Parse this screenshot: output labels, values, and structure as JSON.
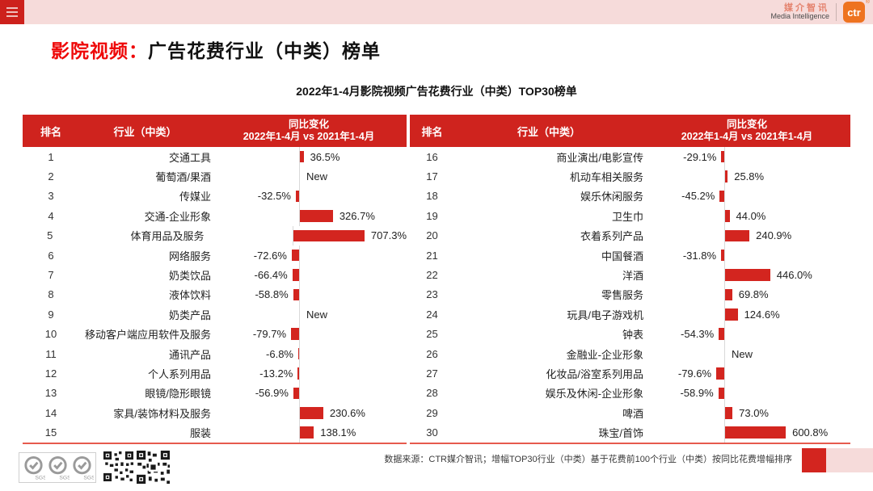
{
  "topbar": {
    "brand_cn": "媒介智讯",
    "brand_en": "Media Intelligence",
    "logo_text": "ctr",
    "reg_mark": "®"
  },
  "title": {
    "highlight": "影院视频：",
    "rest": "广告花费行业（中类）榜单"
  },
  "subtitle": "2022年1-4月影院视频广告花费行业（中类）TOP30榜单",
  "table_headers": {
    "rank": "排名",
    "industry": "行业（中类）",
    "change_line1": "同比变化",
    "change_line2": "2022年1-4月 vs 2021年1-4月"
  },
  "chart_data": {
    "type": "bar",
    "orientation": "horizontal",
    "title": "2022年1-4月影院视频广告花费行业（中类）TOP30榜单",
    "value_axis": "同比变化 2022年1-4月 vs 2021年1-4月（%）",
    "bar_color": "#d3251f",
    "entries": [
      {
        "rank": 1,
        "industry": "交通工具",
        "change_pct": 36.5,
        "label": "36.5%"
      },
      {
        "rank": 2,
        "industry": "葡萄酒/果酒",
        "change_pct": null,
        "label": "New"
      },
      {
        "rank": 3,
        "industry": "传媒业",
        "change_pct": -32.5,
        "label": "-32.5%"
      },
      {
        "rank": 4,
        "industry": "交通-企业形象",
        "change_pct": 326.7,
        "label": "326.7%"
      },
      {
        "rank": 5,
        "industry": "体育用品及服务",
        "change_pct": 707.3,
        "label": "707.3%"
      },
      {
        "rank": 6,
        "industry": "网络服务",
        "change_pct": -72.6,
        "label": "-72.6%"
      },
      {
        "rank": 7,
        "industry": "奶类饮品",
        "change_pct": -66.4,
        "label": "-66.4%"
      },
      {
        "rank": 8,
        "industry": "液体饮料",
        "change_pct": -58.8,
        "label": "-58.8%"
      },
      {
        "rank": 9,
        "industry": "奶类产品",
        "change_pct": null,
        "label": "New"
      },
      {
        "rank": 10,
        "industry": "移动客户端应用软件及服务",
        "change_pct": -79.7,
        "label": "-79.7%"
      },
      {
        "rank": 11,
        "industry": "通讯产品",
        "change_pct": -6.8,
        "label": "-6.8%"
      },
      {
        "rank": 12,
        "industry": "个人系列用品",
        "change_pct": -13.2,
        "label": "-13.2%"
      },
      {
        "rank": 13,
        "industry": "眼镜/隐形眼镜",
        "change_pct": -56.9,
        "label": "-56.9%"
      },
      {
        "rank": 14,
        "industry": "家具/装饰材料及服务",
        "change_pct": 230.6,
        "label": "230.6%"
      },
      {
        "rank": 15,
        "industry": "服装",
        "change_pct": 138.1,
        "label": "138.1%"
      },
      {
        "rank": 16,
        "industry": "商业演出/电影宣传",
        "change_pct": -29.1,
        "label": "-29.1%"
      },
      {
        "rank": 17,
        "industry": "机动车相关服务",
        "change_pct": 25.8,
        "label": "25.8%"
      },
      {
        "rank": 18,
        "industry": "娱乐休闲服务",
        "change_pct": -45.2,
        "label": "-45.2%"
      },
      {
        "rank": 19,
        "industry": "卫生巾",
        "change_pct": 44.0,
        "label": "44.0%"
      },
      {
        "rank": 20,
        "industry": "衣着系列产品",
        "change_pct": 240.9,
        "label": "240.9%"
      },
      {
        "rank": 21,
        "industry": "中国餐酒",
        "change_pct": -31.8,
        "label": "-31.8%"
      },
      {
        "rank": 22,
        "industry": "洋酒",
        "change_pct": 446.0,
        "label": "446.0%"
      },
      {
        "rank": 23,
        "industry": "零售服务",
        "change_pct": 69.8,
        "label": "69.8%"
      },
      {
        "rank": 24,
        "industry": "玩具/电子游戏机",
        "change_pct": 124.6,
        "label": "124.6%"
      },
      {
        "rank": 25,
        "industry": "钟表",
        "change_pct": -54.3,
        "label": "-54.3%"
      },
      {
        "rank": 26,
        "industry": "金融业-企业形象",
        "change_pct": null,
        "label": "New"
      },
      {
        "rank": 27,
        "industry": "化妆品/浴室系列用品",
        "change_pct": -79.6,
        "label": "-79.6%"
      },
      {
        "rank": 28,
        "industry": "娱乐及休闲-企业形象",
        "change_pct": -58.9,
        "label": "-58.9%"
      },
      {
        "rank": 29,
        "industry": "啤酒",
        "change_pct": 73.0,
        "label": "73.0%"
      },
      {
        "rank": 30,
        "industry": "珠宝/首饰",
        "change_pct": 600.8,
        "label": "600.8%"
      }
    ]
  },
  "footer": {
    "source": "数据来源：CTR媒介智讯；增幅TOP30行业（中类）基于花费前100个行业（中类）按同比花费增幅排序",
    "sgs_label": "SGS"
  },
  "colors": {
    "header_red": "#cf231e",
    "bar_red": "#d3251f",
    "title_red": "#ee0808",
    "topbar_pink": "#f6dbda",
    "logo_orange": "#ee7320",
    "baseline_gray": "#d9d9d9"
  }
}
